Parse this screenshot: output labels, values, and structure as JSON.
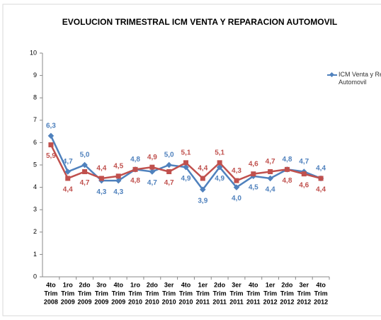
{
  "chart_data": {
    "type": "line",
    "title": "EVOLUCION TRIMESTRAL ICM  VENTA Y REPARACION AUTOMOVIL",
    "categories": [
      [
        "4to",
        "Trim",
        "2008"
      ],
      [
        "1ro",
        "Trim",
        "2009"
      ],
      [
        "2do",
        "Trim",
        "2009"
      ],
      [
        "3ro",
        "Trim",
        "2009"
      ],
      [
        "4to",
        "Trim",
        "2009"
      ],
      [
        "1ro",
        "Trim",
        "2010"
      ],
      [
        "2do",
        "Trim",
        "2010"
      ],
      [
        "3er",
        "Trim",
        "2010"
      ],
      [
        "4to",
        "Trim",
        "2010"
      ],
      [
        "1er",
        "Trim",
        "2011"
      ],
      [
        "2do",
        "Trim",
        "2011"
      ],
      [
        "3er",
        "Trim",
        "2011"
      ],
      [
        "4to",
        "Trim",
        "2011"
      ],
      [
        "1er",
        "Trim",
        "2012"
      ],
      [
        "2do",
        "Trim",
        "2012"
      ],
      [
        "3er",
        "Trim",
        "2012"
      ],
      [
        "4to",
        "Trim",
        "2012"
      ]
    ],
    "series": [
      {
        "name": "ICM Venta y Reparacion Automovil",
        "color": "#4f81bd",
        "marker": "diamond",
        "values": [
          6.3,
          4.7,
          5.0,
          4.3,
          4.3,
          4.8,
          4.7,
          5.0,
          4.9,
          3.9,
          4.9,
          4.0,
          4.5,
          4.4,
          4.8,
          4.7,
          4.4
        ],
        "value_labels": [
          "6,3",
          "4,7",
          "5,0",
          "4,3",
          "4,3",
          "4,8",
          "4,7",
          "5,0",
          "4,9",
          "3,9",
          "4,9",
          "4,0",
          "4,5",
          "4,4",
          "4,8",
          "4,7",
          "4,4"
        ]
      },
      {
        "color": "#c0504d",
        "marker": "square",
        "values": [
          5.9,
          4.4,
          4.7,
          4.4,
          4.5,
          4.8,
          4.9,
          4.7,
          5.1,
          4.4,
          5.1,
          4.3,
          4.6,
          4.7,
          4.8,
          4.6,
          4.4
        ],
        "value_labels": [
          "5,9",
          "4,4",
          "4,7",
          "4,4",
          "4,5",
          "4,8",
          "4,9",
          "4,7",
          "5,1",
          "4,4",
          "5,1",
          "4,3",
          "4,6",
          "4,7",
          "4,8",
          "4,6",
          "4,4"
        ]
      }
    ],
    "ylim": [
      0,
      10
    ],
    "yticks": [
      0,
      1,
      2,
      3,
      4,
      5,
      6,
      7,
      8,
      9,
      10
    ],
    "grid": false,
    "legend": "right"
  }
}
